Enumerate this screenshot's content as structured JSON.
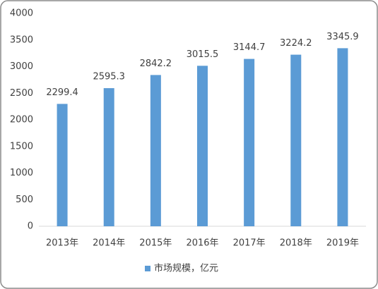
{
  "chart_data": {
    "type": "bar",
    "categories": [
      "2013年",
      "2014年",
      "2015年",
      "2016年",
      "2017年",
      "2018年",
      "2019年"
    ],
    "series": [
      {
        "name": "市场规模，亿元",
        "color": "#5b9bd5",
        "values": [
          2299.4,
          2595.3,
          2842.2,
          3015.5,
          3144.7,
          3224.2,
          3345.9
        ]
      }
    ],
    "ylim": [
      0,
      4000
    ],
    "yticks": [
      0,
      500,
      1000,
      1500,
      2000,
      2500,
      3000,
      3500,
      4000
    ],
    "grid": false,
    "data_labels": true,
    "legend": "bottom"
  }
}
